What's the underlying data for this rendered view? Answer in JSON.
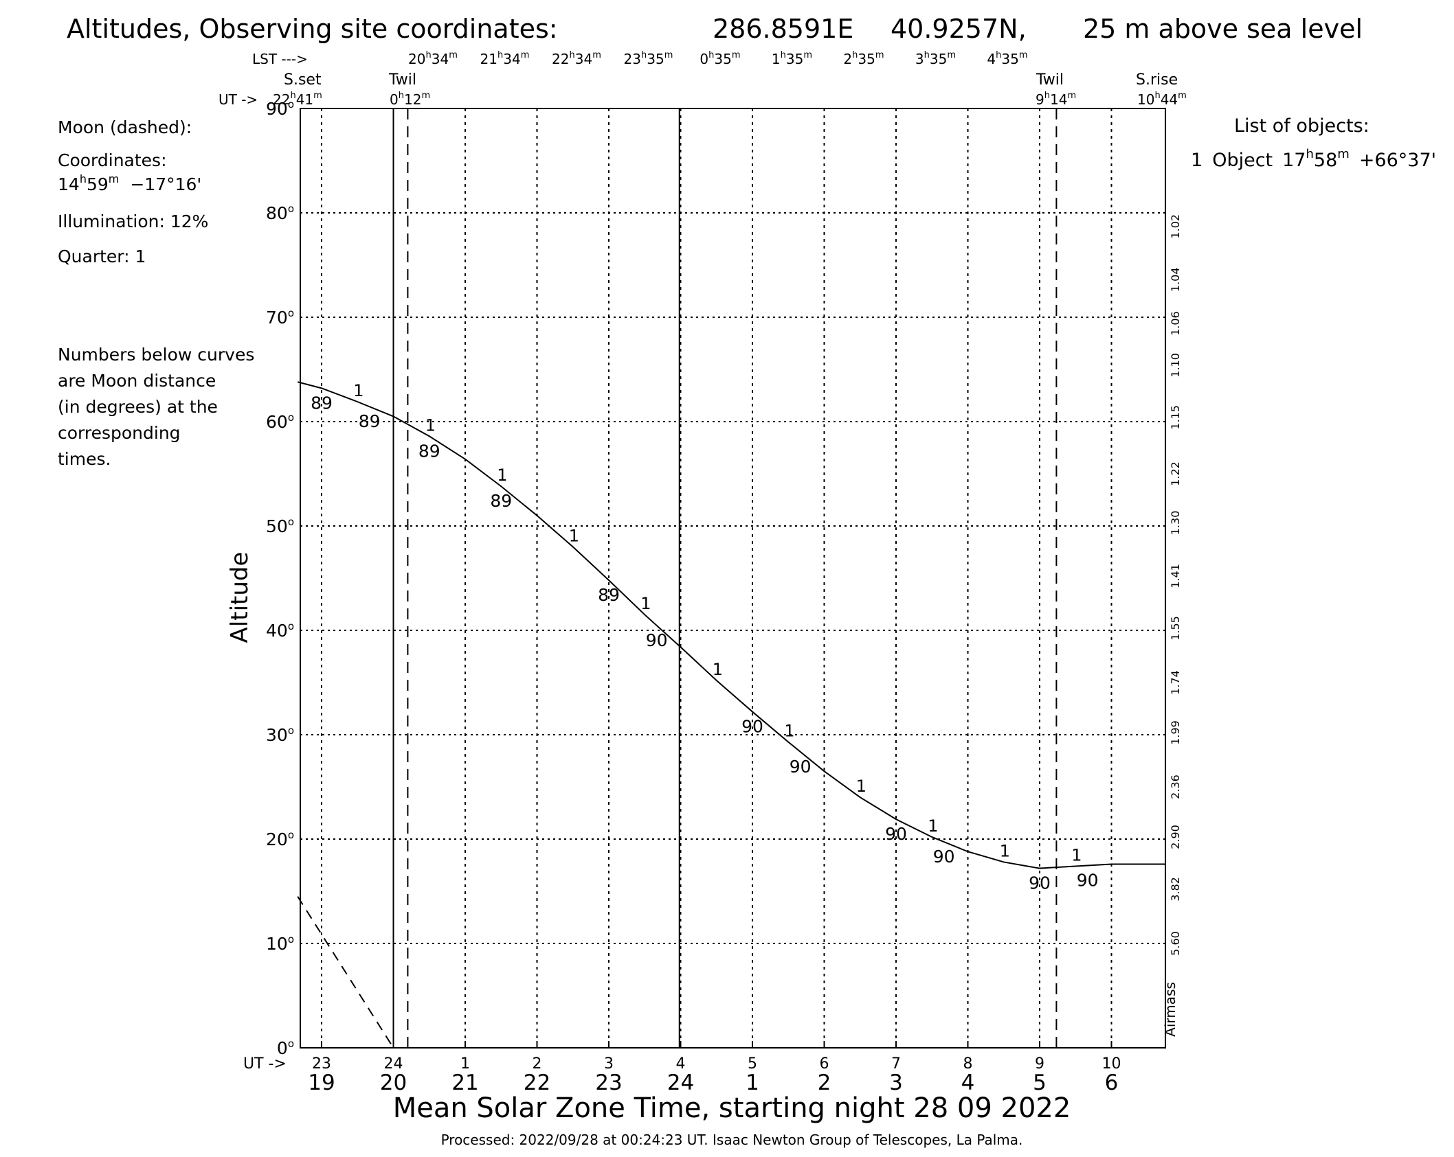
{
  "header": {
    "title": "Altitudes, Observing site coordinates:",
    "longitude": "286.8591E",
    "latitude": "40.9257N,",
    "elevation": "25 m above sea level"
  },
  "top_axis": {
    "lst_label": "LST --->",
    "ut_label": "UT ->",
    "lst_ticks": [
      {
        "h": "20",
        "m": "34"
      },
      {
        "h": "21",
        "m": "34"
      },
      {
        "h": "22",
        "m": "34"
      },
      {
        "h": "23",
        "m": "35"
      },
      {
        "h": "0",
        "m": "35"
      },
      {
        "h": "1",
        "m": "35"
      },
      {
        "h": "2",
        "m": "35"
      },
      {
        "h": "3",
        "m": "35"
      },
      {
        "h": "4",
        "m": "35"
      }
    ],
    "sunset": {
      "label": "S.set",
      "h": "22",
      "m": "41"
    },
    "twilight_evening": {
      "label": "Twil",
      "h": "0",
      "m": "12"
    },
    "twilight_morning": {
      "label": "Twil",
      "h": "9",
      "m": "14"
    },
    "sunrise": {
      "label": "S.rise",
      "h": "10",
      "m": "44"
    }
  },
  "moon": {
    "heading": "Moon (dashed):",
    "coords_label": "Coordinates:",
    "ra_h": "14",
    "ra_m": "59",
    "dec": "−17°16'",
    "illumination": "Illumination:  12%",
    "quarter": "Quarter: 1"
  },
  "note": [
    "Numbers below curves",
    "are Moon distance",
    "(in degrees) at the",
    "corresponding",
    "times."
  ],
  "objects": {
    "heading": "List of objects:",
    "items": [
      {
        "index": "1",
        "name": "Object",
        "ra_h": "17",
        "ra_m": "58",
        "dec": "+66°37'"
      }
    ]
  },
  "footer": {
    "xlabel": "Mean Solar Zone Time, starting night 28 09 2022",
    "processed": "Processed: 2022/09/28 at 00:24:23 UT. Isaac  Newton Group of Telescopes, La Palma."
  },
  "colors": {
    "curve": "#000000",
    "object_label": "#ff00ff",
    "moon_distance": "#0000ff",
    "grid": "#000000"
  },
  "chart_data": {
    "type": "line",
    "ylabel": "Altitude",
    "right_axis_label": "Airmass",
    "xlim": [
      "18:40",
      "06:45"
    ],
    "ylim": [
      0,
      90
    ],
    "grid": true,
    "y_ticks": [
      0,
      10,
      20,
      30,
      40,
      50,
      60,
      70,
      80,
      90
    ],
    "x_ticks_local": [
      "19",
      "20",
      "21",
      "22",
      "23",
      "24",
      "1",
      "2",
      "3",
      "4",
      "5",
      "6"
    ],
    "x_ticks_ut": [
      "23",
      "24",
      "1",
      "2",
      "3",
      "4",
      "5",
      "6",
      "7",
      "8",
      "9",
      "10"
    ],
    "airmass_ticks": [
      "1.02",
      "1.04",
      "1.06",
      "1.10",
      "1.15",
      "1.22",
      "1.30",
      "1.41",
      "1.55",
      "1.74",
      "1.99",
      "2.36",
      "2.90",
      "3.82",
      "5.60"
    ],
    "series": [
      {
        "name": "1",
        "x": [
          "18:40",
          "19:00",
          "19:30",
          "20:00",
          "20:30",
          "21:00",
          "21:30",
          "22:00",
          "22:30",
          "23:00",
          "23:30",
          "24:00",
          "00:30",
          "01:00",
          "01:30",
          "02:00",
          "02:30",
          "03:00",
          "03:30",
          "04:00",
          "04:30",
          "05:00",
          "05:30",
          "06:00",
          "06:45"
        ],
        "altitude": [
          63.8,
          63.2,
          61.9,
          60.5,
          58.6,
          56.4,
          53.8,
          51.0,
          48.0,
          44.8,
          41.5,
          38.4,
          35.2,
          32.2,
          29.3,
          26.5,
          24.0,
          21.9,
          20.2,
          18.8,
          17.8,
          17.2,
          17.4,
          17.6,
          17.6
        ],
        "moon_distance": [
          {
            "time": "19:00",
            "value": "89"
          },
          {
            "time": "19:40",
            "value": "89"
          },
          {
            "time": "20:30",
            "value": "89"
          },
          {
            "time": "21:30",
            "value": "89"
          },
          {
            "time": "23:00",
            "value": "89"
          },
          {
            "time": "23:40",
            "value": "90"
          },
          {
            "time": "01:00",
            "value": "90"
          },
          {
            "time": "01:40",
            "value": "90"
          },
          {
            "time": "03:00",
            "value": "90"
          },
          {
            "time": "03:40",
            "value": "90"
          },
          {
            "time": "05:00",
            "value": "90"
          },
          {
            "time": "05:40",
            "value": "90"
          }
        ]
      },
      {
        "name": "Moon",
        "x": [
          "18:40",
          "20:00"
        ],
        "altitude": [
          14.5,
          0
        ]
      }
    ],
    "vertical_markers": [
      {
        "label": "S.set",
        "time": "18:41",
        "style": "solid"
      },
      {
        "label": "Twil",
        "time": "20:12",
        "style": "dashed"
      },
      {
        "label": "Twil",
        "time": "05:14",
        "style": "dashed"
      },
      {
        "label": "S.rise",
        "time": "06:44",
        "style": "solid"
      }
    ],
    "midnight_line": "24:00"
  }
}
